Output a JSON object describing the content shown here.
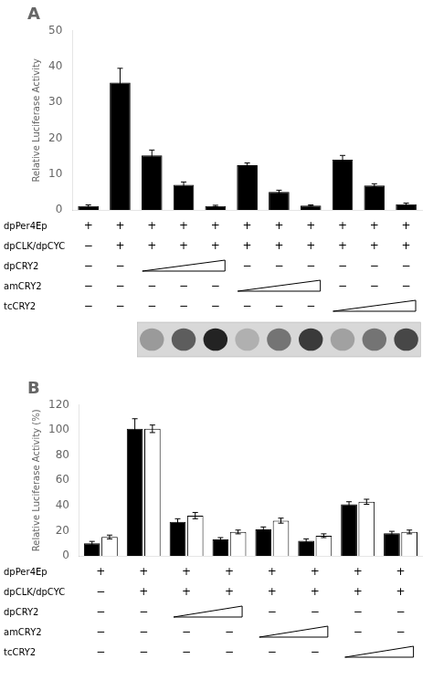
{
  "chart_data": [
    {
      "type": "bar",
      "title": "A",
      "ylabel": "Relative Luciferase Activity",
      "categories": [
        null,
        null,
        null,
        null,
        null,
        null,
        null,
        null,
        null,
        null,
        null
      ],
      "values": [
        1.1,
        35.5,
        15.2,
        7.0,
        1.1,
        12.5,
        5.0,
        1.2,
        14.0,
        6.8,
        1.6
      ],
      "errors": [
        0.3,
        4.0,
        1.5,
        0.8,
        0.2,
        0.6,
        0.5,
        0.2,
        1.2,
        0.5,
        0.3
      ],
      "color": "#000000",
      "ylim": [
        0,
        50
      ],
      "yticks": [
        0,
        10,
        20,
        30,
        40,
        50
      ],
      "grid": false,
      "legend": false,
      "tick_labels": "y",
      "annotations": [
        {
          "label": "dpPer4Ep",
          "signs": [
            "+",
            "+",
            "+",
            "+",
            "+",
            "+",
            "+",
            "+",
            "+",
            "+",
            "+"
          ]
        },
        {
          "label": "dpCLK/dpCYC",
          "signs": [
            "−",
            "+",
            "+",
            "+",
            "+",
            "+",
            "+",
            "+",
            "+",
            "+",
            "+"
          ]
        },
        {
          "label": "dpCRY2",
          "signs": [
            "−",
            "−",
            null,
            null,
            null,
            "−",
            "−",
            "−",
            "−",
            "−",
            "−"
          ]
        },
        {
          "label": "amCRY2",
          "signs": [
            "−",
            "−",
            "−",
            "−",
            "−",
            null,
            null,
            null,
            "−",
            "−",
            "−"
          ]
        },
        {
          "label": "tcCRY2",
          "signs": [
            "−",
            "−",
            "−",
            "−",
            "−",
            "−",
            "−",
            "−",
            null,
            null,
            null
          ]
        }
      ],
      "blot_intensities": [
        null,
        null,
        0.45,
        0.72,
        0.98,
        0.35,
        0.62,
        0.88,
        0.42,
        0.62,
        0.82
      ]
    },
    {
      "type": "bar",
      "title": "B",
      "ylabel": "Relative Luciferase Activity (%)",
      "categories": [
        null,
        null,
        null,
        null,
        null,
        null,
        null,
        null
      ],
      "series": [
        {
          "color": "#000000",
          "values": [
            10,
            101,
            27,
            13,
            21,
            12,
            41,
            18
          ],
          "errors": [
            1.5,
            8,
            2.5,
            1.5,
            2,
            1.5,
            2,
            1.5
          ]
        },
        {
          "color": "#ffffff",
          "values": [
            15,
            101,
            32,
            19,
            28,
            16,
            43,
            19
          ],
          "errors": [
            1.5,
            3,
            2.5,
            1.5,
            2,
            1.5,
            2,
            1.5
          ]
        }
      ],
      "ylim": [
        0,
        120
      ],
      "yticks": [
        0,
        20,
        40,
        60,
        80,
        100,
        120
      ],
      "grid": false,
      "legend": false,
      "tick_labels": "y",
      "annotations": [
        {
          "label": "dpPer4Ep",
          "signs": [
            "+",
            "+",
            "+",
            "+",
            "+",
            "+",
            "+",
            "+"
          ]
        },
        {
          "label": "dpCLK/dpCYC",
          "signs": [
            "−",
            "+",
            "+",
            "+",
            "+",
            "+",
            "+",
            "+"
          ]
        },
        {
          "label": "dpCRY2",
          "signs": [
            "−",
            "−",
            null,
            null,
            "−",
            "−",
            "−",
            "−"
          ]
        },
        {
          "label": "amCRY2",
          "signs": [
            "−",
            "−",
            "−",
            "−",
            null,
            null,
            "−",
            "−"
          ]
        },
        {
          "label": "tcCRY2",
          "signs": [
            "−",
            "−",
            "−",
            "−",
            "−",
            "−",
            null,
            null
          ]
        }
      ]
    }
  ]
}
